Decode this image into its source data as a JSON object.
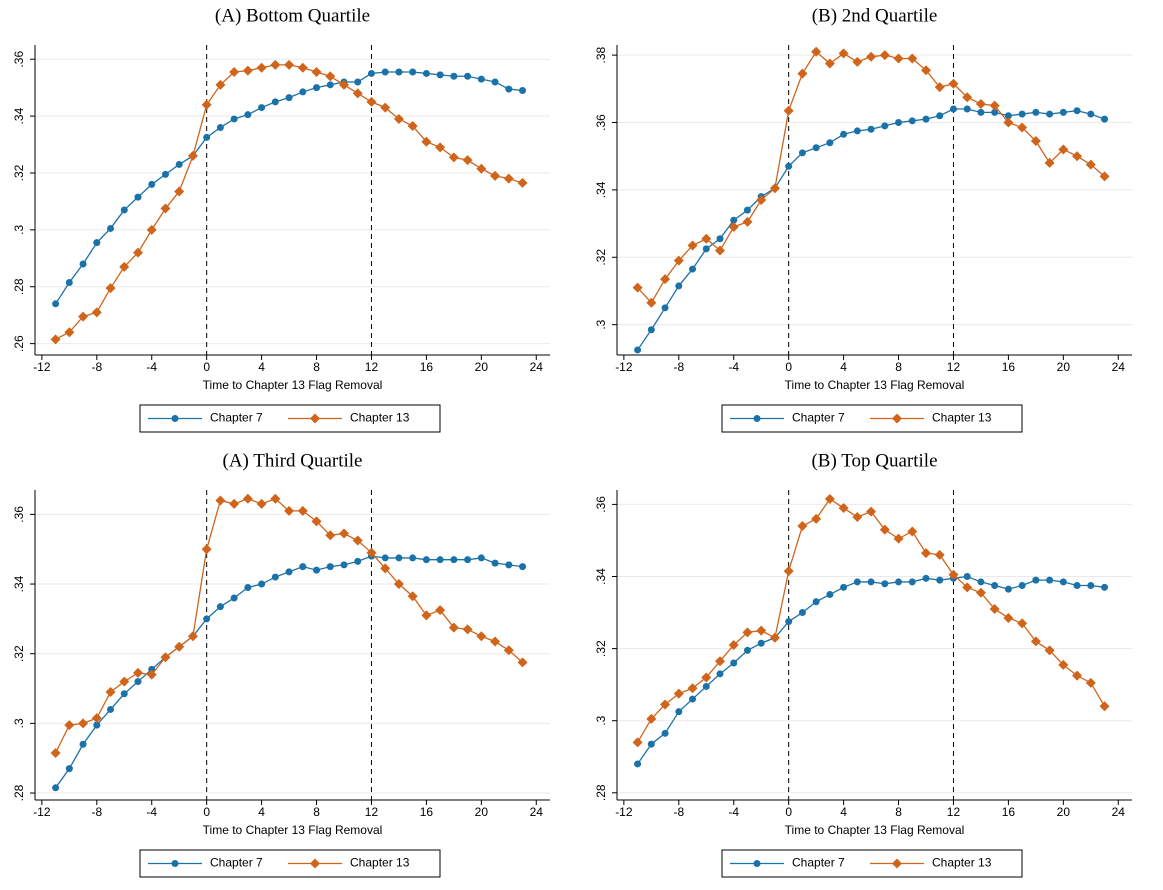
{
  "chart_data": [
    {
      "type": "line",
      "title": "(A) Bottom Quartile",
      "xlabel": "Time to Chapter 13 Flag Removal",
      "x": [
        -11,
        -10,
        -9,
        -8,
        -7,
        -6,
        -5,
        -4,
        -3,
        -2,
        -1,
        0,
        1,
        2,
        3,
        4,
        5,
        6,
        7,
        8,
        9,
        10,
        11,
        12,
        13,
        14,
        15,
        16,
        17,
        18,
        19,
        20,
        21,
        22,
        23
      ],
      "xlim": [
        -12.5,
        25
      ],
      "xticks": [
        -12,
        -8,
        -4,
        0,
        4,
        8,
        12,
        16,
        20,
        24
      ],
      "ylim": [
        0.256,
        0.365
      ],
      "yticks": [
        {
          "value": 0.26,
          "label": ".26"
        },
        {
          "value": 0.28,
          "label": ".28"
        },
        {
          "value": 0.3,
          "label": ".3"
        },
        {
          "value": 0.32,
          "label": ".32"
        },
        {
          "value": 0.34,
          "label": ".34"
        },
        {
          "value": 0.36,
          "label": ".36"
        }
      ],
      "grid": true,
      "vlines": [
        0,
        12
      ],
      "series": [
        {
          "name": "Chapter 7",
          "color": "#1a72a8",
          "marker": "circle",
          "values": [
            0.274,
            0.2815,
            0.288,
            0.2955,
            0.3005,
            0.307,
            0.3115,
            0.316,
            0.3195,
            0.323,
            0.326,
            0.3325,
            0.336,
            0.339,
            0.3405,
            0.343,
            0.345,
            0.3465,
            0.3485,
            0.35,
            0.351,
            0.352,
            0.352,
            0.355,
            0.3555,
            0.3555,
            0.3555,
            0.355,
            0.3545,
            0.354,
            0.354,
            0.353,
            0.352,
            0.3495,
            0.349
          ]
        },
        {
          "name": "Chapter 13",
          "color": "#d0641a",
          "marker": "diamond",
          "values": [
            0.2615,
            0.264,
            0.2695,
            0.271,
            0.2795,
            0.287,
            0.292,
            0.3,
            0.3075,
            0.3135,
            0.326,
            0.344,
            0.351,
            0.3555,
            0.356,
            0.357,
            0.358,
            0.358,
            0.357,
            0.3555,
            0.354,
            0.351,
            0.348,
            0.345,
            0.343,
            0.339,
            0.3365,
            0.331,
            0.329,
            0.3255,
            0.3245,
            0.3215,
            0.319,
            0.318,
            0.3165
          ]
        }
      ]
    },
    {
      "type": "line",
      "title": "(B) 2nd Quartile",
      "xlabel": "Time to Chapter 13 Flag Removal",
      "x": [
        -11,
        -10,
        -9,
        -8,
        -7,
        -6,
        -5,
        -4,
        -3,
        -2,
        -1,
        0,
        1,
        2,
        3,
        4,
        5,
        6,
        7,
        8,
        9,
        10,
        11,
        12,
        13,
        14,
        15,
        16,
        17,
        18,
        19,
        20,
        21,
        22,
        23
      ],
      "xlim": [
        -12.5,
        25
      ],
      "xticks": [
        -12,
        -8,
        -4,
        0,
        4,
        8,
        12,
        16,
        20,
        24
      ],
      "ylim": [
        0.291,
        0.383
      ],
      "yticks": [
        {
          "value": 0.3,
          "label": ".3"
        },
        {
          "value": 0.32,
          "label": ".32"
        },
        {
          "value": 0.34,
          "label": ".34"
        },
        {
          "value": 0.36,
          "label": ".36"
        },
        {
          "value": 0.38,
          "label": ".38"
        }
      ],
      "grid": true,
      "vlines": [
        0,
        12
      ],
      "series": [
        {
          "name": "Chapter 7",
          "color": "#1a72a8",
          "marker": "circle",
          "values": [
            0.2925,
            0.2985,
            0.305,
            0.3115,
            0.3165,
            0.3225,
            0.3255,
            0.331,
            0.334,
            0.338,
            0.3405,
            0.347,
            0.351,
            0.3525,
            0.354,
            0.3565,
            0.3575,
            0.358,
            0.359,
            0.36,
            0.3605,
            0.361,
            0.362,
            0.364,
            0.364,
            0.363,
            0.363,
            0.362,
            0.3625,
            0.363,
            0.3625,
            0.363,
            0.3635,
            0.3625,
            0.361
          ]
        },
        {
          "name": "Chapter 13",
          "color": "#d0641a",
          "marker": "diamond",
          "values": [
            0.311,
            0.3065,
            0.3135,
            0.319,
            0.3235,
            0.3255,
            0.322,
            0.329,
            0.3305,
            0.337,
            0.3405,
            0.3635,
            0.3745,
            0.381,
            0.3775,
            0.3805,
            0.378,
            0.3795,
            0.38,
            0.379,
            0.379,
            0.3755,
            0.3705,
            0.3715,
            0.3675,
            0.3655,
            0.365,
            0.36,
            0.3585,
            0.3545,
            0.348,
            0.352,
            0.35,
            0.3475,
            0.344
          ]
        }
      ]
    },
    {
      "type": "line",
      "title": "(A) Third Quartile",
      "xlabel": "Time to Chapter 13 Flag Removal",
      "x": [
        -11,
        -10,
        -9,
        -8,
        -7,
        -6,
        -5,
        -4,
        -3,
        -2,
        -1,
        0,
        1,
        2,
        3,
        4,
        5,
        6,
        7,
        8,
        9,
        10,
        11,
        12,
        13,
        14,
        15,
        16,
        17,
        18,
        19,
        20,
        21,
        22,
        23
      ],
      "xlim": [
        -12.5,
        25
      ],
      "xticks": [
        -12,
        -8,
        -4,
        0,
        4,
        8,
        12,
        16,
        20,
        24
      ],
      "ylim": [
        0.278,
        0.367
      ],
      "yticks": [
        {
          "value": 0.28,
          "label": ".28"
        },
        {
          "value": 0.3,
          "label": ".3"
        },
        {
          "value": 0.32,
          "label": ".32"
        },
        {
          "value": 0.34,
          "label": ".34"
        },
        {
          "value": 0.36,
          "label": ".36"
        }
      ],
      "grid": true,
      "vlines": [
        0,
        12
      ],
      "series": [
        {
          "name": "Chapter 7",
          "color": "#1a72a8",
          "marker": "circle",
          "values": [
            0.2815,
            0.287,
            0.294,
            0.2995,
            0.304,
            0.3085,
            0.312,
            0.3155,
            0.319,
            0.322,
            0.325,
            0.33,
            0.3335,
            0.336,
            0.339,
            0.34,
            0.342,
            0.3435,
            0.345,
            0.344,
            0.345,
            0.3455,
            0.3465,
            0.348,
            0.3475,
            0.3475,
            0.3475,
            0.347,
            0.347,
            0.347,
            0.347,
            0.3475,
            0.346,
            0.3455,
            0.345
          ]
        },
        {
          "name": "Chapter 13",
          "color": "#d0641a",
          "marker": "diamond",
          "values": [
            0.2915,
            0.2995,
            0.3,
            0.3015,
            0.309,
            0.312,
            0.3145,
            0.314,
            0.319,
            0.322,
            0.325,
            0.35,
            0.364,
            0.363,
            0.3645,
            0.363,
            0.3645,
            0.361,
            0.361,
            0.358,
            0.354,
            0.3545,
            0.3525,
            0.349,
            0.3445,
            0.34,
            0.3365,
            0.331,
            0.3325,
            0.3275,
            0.327,
            0.325,
            0.3235,
            0.321,
            0.3175
          ]
        }
      ]
    },
    {
      "type": "line",
      "title": "(B) Top Quartile",
      "xlabel": "Time to Chapter 13 Flag Removal",
      "x": [
        -11,
        -10,
        -9,
        -8,
        -7,
        -6,
        -5,
        -4,
        -3,
        -2,
        -1,
        0,
        1,
        2,
        3,
        4,
        5,
        6,
        7,
        8,
        9,
        10,
        11,
        12,
        13,
        14,
        15,
        16,
        17,
        18,
        19,
        20,
        21,
        22,
        23
      ],
      "xlim": [
        -12.5,
        25
      ],
      "xticks": [
        -12,
        -8,
        -4,
        0,
        4,
        8,
        12,
        16,
        20,
        24
      ],
      "ylim": [
        0.278,
        0.364
      ],
      "yticks": [
        {
          "value": 0.28,
          "label": ".28"
        },
        {
          "value": 0.3,
          "label": ".3"
        },
        {
          "value": 0.32,
          "label": ".32"
        },
        {
          "value": 0.34,
          "label": ".34"
        },
        {
          "value": 0.36,
          "label": ".36"
        }
      ],
      "grid": true,
      "vlines": [
        0,
        12
      ],
      "series": [
        {
          "name": "Chapter 7",
          "color": "#1a72a8",
          "marker": "circle",
          "values": [
            0.288,
            0.2935,
            0.2965,
            0.3025,
            0.306,
            0.3095,
            0.313,
            0.316,
            0.3195,
            0.3215,
            0.323,
            0.3275,
            0.33,
            0.333,
            0.335,
            0.337,
            0.3385,
            0.3385,
            0.338,
            0.3385,
            0.3385,
            0.3395,
            0.339,
            0.3395,
            0.34,
            0.3385,
            0.3375,
            0.3365,
            0.3375,
            0.339,
            0.339,
            0.3385,
            0.3375,
            0.3375,
            0.337
          ]
        },
        {
          "name": "Chapter 13",
          "color": "#d0641a",
          "marker": "diamond",
          "values": [
            0.294,
            0.3005,
            0.3045,
            0.3075,
            0.309,
            0.312,
            0.3165,
            0.321,
            0.3245,
            0.325,
            0.323,
            0.3415,
            0.354,
            0.356,
            0.3615,
            0.359,
            0.3565,
            0.358,
            0.353,
            0.3505,
            0.3525,
            0.3465,
            0.346,
            0.3405,
            0.337,
            0.3355,
            0.331,
            0.3285,
            0.327,
            0.322,
            0.3195,
            0.3155,
            0.3125,
            0.3105,
            0.304
          ]
        }
      ]
    }
  ]
}
